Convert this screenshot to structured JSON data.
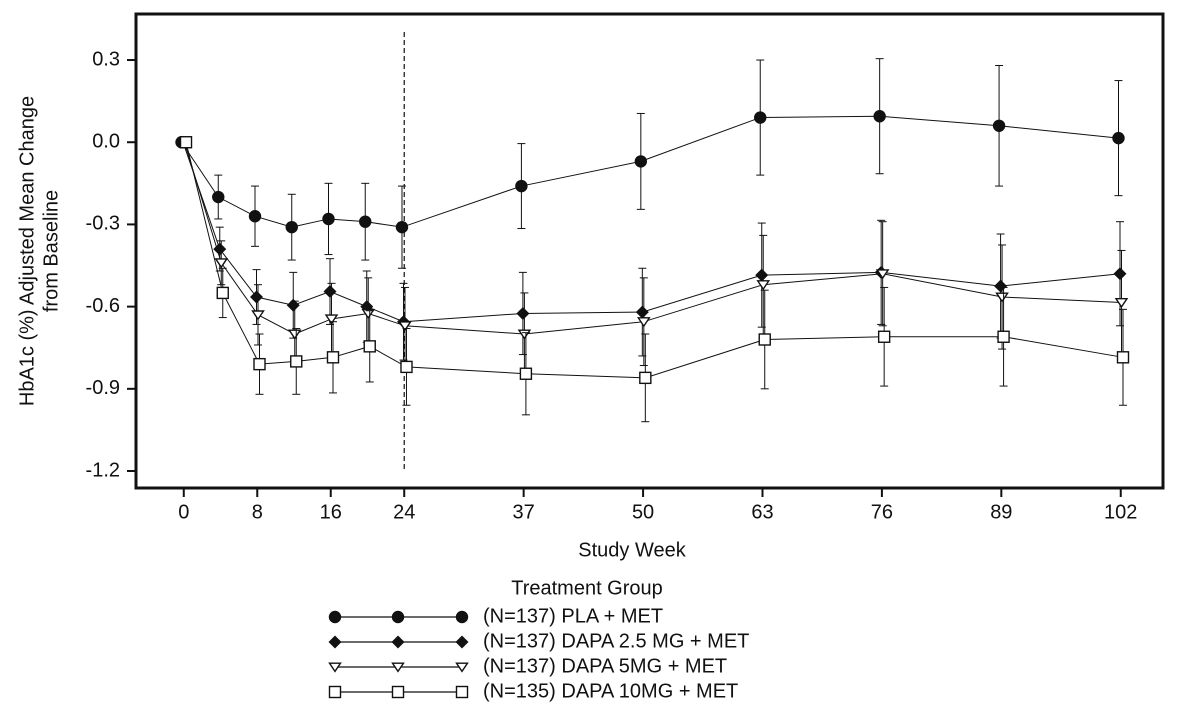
{
  "chart_data": {
    "type": "line",
    "ylabel": [
      "HbA1c (%) Adjusted Mean Change",
      "from Baseline"
    ],
    "xlabel": "Study Week",
    "legend_title": "Treatment Group",
    "x": [
      0,
      4,
      8,
      12,
      16,
      20,
      24,
      37,
      50,
      63,
      76,
      89,
      102
    ],
    "xlim": [
      -5.2,
      106.6
    ],
    "xticks": [
      0,
      8,
      16,
      24,
      37,
      50,
      63,
      76,
      89,
      102
    ],
    "ylim": [
      -1.262,
      0.468
    ],
    "yticks": [
      0.3,
      {
        "value": 0,
        "label": "0.0"
      },
      -0.3,
      -0.6,
      -0.9,
      -1.2
    ],
    "vline": 24,
    "series": [
      {
        "name": "(N=137) PLA + MET",
        "color": "#111111",
        "marker": "circle",
        "values": [
          0,
          -0.2,
          -0.27,
          -0.31,
          -0.28,
          -0.29,
          -0.31,
          -0.16,
          -0.07,
          0.09,
          0.095,
          0.06,
          0.015
        ],
        "errors": [
          0,
          0.08,
          0.11,
          0.12,
          0.13,
          0.14,
          0.15,
          0.155,
          0.175,
          0.21,
          0.21,
          0.22,
          0.21
        ]
      },
      {
        "name": "(N=137) DAPA 2.5 MG + MET",
        "color": "#111111",
        "marker": "diamond",
        "values": [
          0,
          -0.39,
          -0.565,
          -0.595,
          -0.545,
          -0.6,
          -0.655,
          -0.625,
          -0.62,
          -0.485,
          -0.475,
          -0.525,
          -0.48
        ],
        "errors": [
          0,
          0.08,
          0.1,
          0.12,
          0.12,
          0.13,
          0.14,
          0.15,
          0.16,
          0.19,
          0.19,
          0.19,
          0.19
        ]
      },
      {
        "name": "(N=137) DAPA 5MG + MET",
        "color": "#111111",
        "marker": "triangle-down",
        "values": [
          0,
          -0.44,
          -0.63,
          -0.7,
          -0.645,
          -0.625,
          -0.67,
          -0.7,
          -0.655,
          -0.52,
          -0.48,
          -0.565,
          -0.585
        ],
        "errors": [
          0,
          0.08,
          0.11,
          0.12,
          0.13,
          0.13,
          0.14,
          0.15,
          0.16,
          0.18,
          0.19,
          0.19,
          0.19
        ]
      },
      {
        "name": "(N=135) DAPA 10MG + MET",
        "color": "#111111",
        "marker": "square",
        "values": [
          0,
          -0.55,
          -0.81,
          -0.8,
          -0.785,
          -0.745,
          -0.82,
          -0.845,
          -0.86,
          -0.72,
          -0.71,
          -0.71,
          -0.785
        ],
        "errors": [
          0,
          0.09,
          0.11,
          0.12,
          0.13,
          0.13,
          0.14,
          0.15,
          0.16,
          0.18,
          0.18,
          0.18,
          0.175
        ]
      }
    ]
  }
}
